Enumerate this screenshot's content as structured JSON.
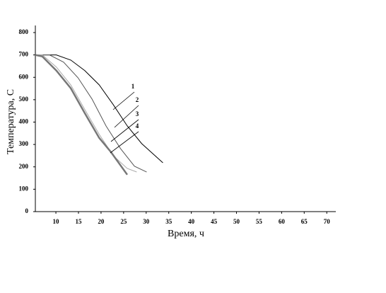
{
  "chart_data": {
    "type": "line",
    "xlabel": "Время, ч",
    "ylabel": "Температура, С",
    "xlim": [
      5.45,
      72
    ],
    "ylim": [
      0,
      800
    ],
    "xticks": [
      10,
      15,
      20,
      25,
      30,
      35,
      40,
      45,
      50,
      55,
      60,
      65,
      70
    ],
    "yticks": [
      0,
      100,
      200,
      300,
      400,
      500,
      600,
      700,
      800
    ],
    "series": [
      {
        "name": "1",
        "color": "#000000",
        "x": [
          5.45,
          10.1,
          13.3,
          16.4,
          19.6,
          22.7,
          25.8,
          29.0,
          33.7
        ],
        "values": [
          700,
          700,
          677,
          630,
          566,
          478,
          383,
          304,
          218
        ]
      },
      {
        "name": "2",
        "color": "#555555",
        "x": [
          5.45,
          8.6,
          11.7,
          14.9,
          18.0,
          21.1,
          24.3,
          27.4,
          30.1
        ],
        "values": [
          700,
          700,
          668,
          598,
          503,
          383,
          282,
          203,
          177
        ]
      },
      {
        "name": "3",
        "color": "#aaaaaa",
        "x": [
          5.45,
          7.0,
          10.1,
          13.3,
          16.4,
          19.6,
          22.7,
          25.8,
          27.9
        ],
        "values": [
          700,
          700,
          646,
          566,
          456,
          345,
          250,
          193,
          177
        ]
      },
      {
        "name": "4",
        "color": "#777777",
        "x": [
          5.45,
          7.0,
          10.1,
          13.3,
          16.4,
          19.6,
          22.2,
          25.8
        ],
        "values": [
          700,
          693,
          630,
          551,
          440,
          329,
          266,
          165
        ]
      }
    ]
  }
}
